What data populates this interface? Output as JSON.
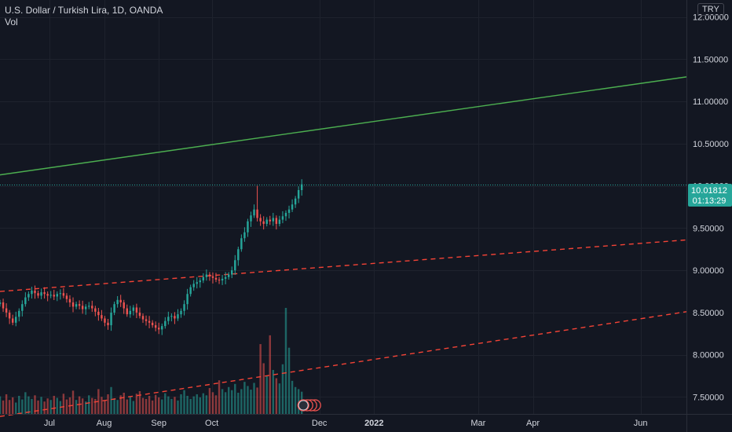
{
  "header": {
    "symbol_title": "U.S. Dollar / Turkish Lira, 1D, OANDA",
    "volume_label": "Vol",
    "currency": "TRY"
  },
  "price_tag": {
    "price": "10.01812",
    "countdown": "01:13:29"
  },
  "colors": {
    "background": "#131722",
    "grid": "#1e222d",
    "up": "#26a69a",
    "down": "#ef5350",
    "trend_green": "#4caf50",
    "trend_red": "#f44336",
    "text": "#d1d4dc",
    "last_price_bg": "#26a69a"
  },
  "chart_data": {
    "type": "candlestick",
    "title": "U.S. Dollar / Turkish Lira, 1D, OANDA",
    "y_axis": {
      "ticks": [
        "12.00000",
        "11.50000",
        "11.00000",
        "10.50000",
        "10.00000",
        "9.50000",
        "9.00000",
        "8.50000",
        "8.00000",
        "7.50000"
      ],
      "ylim": [
        7.3,
        12.2
      ]
    },
    "x_axis": {
      "ticks": [
        {
          "label": "Jul",
          "day": 0
        },
        {
          "label": "Aug",
          "day": 31
        },
        {
          "label": "Sep",
          "day": 62
        },
        {
          "label": "Oct",
          "day": 92
        },
        {
          "label": "Dec",
          "day": 153
        },
        {
          "label": "2022",
          "day": 184
        },
        {
          "label": "Mar",
          "day": 243
        },
        {
          "label": "Apr",
          "day": 274
        },
        {
          "label": "Jun",
          "day": 335
        }
      ],
      "xlim_days": [
        -28,
        361
      ]
    },
    "last_price": 10.01812,
    "trendlines": [
      {
        "name": "",
        "style": "solid",
        "color": "#4caf50",
        "points": [
          [
            -28,
            10.13
          ],
          [
            361,
            11.29
          ]
        ]
      },
      {
        "name": "",
        "style": "dashed",
        "color": "#f44336",
        "points": [
          [
            -28,
            8.75
          ],
          [
            361,
            9.36
          ]
        ]
      },
      {
        "name": "",
        "style": "dashed",
        "color": "#f44336",
        "points": [
          [
            -28,
            7.27
          ],
          [
            361,
            8.51
          ]
        ]
      }
    ],
    "closes": [
      8.62,
      8.55,
      8.5,
      8.43,
      8.38,
      8.45,
      8.52,
      8.6,
      8.68,
      8.72,
      8.76,
      8.73,
      8.7,
      8.74,
      8.72,
      8.7,
      8.71,
      8.69,
      8.72,
      8.73,
      8.7,
      8.66,
      8.62,
      8.57,
      8.6,
      8.58,
      8.54,
      8.57,
      8.58,
      8.55,
      8.51,
      8.47,
      8.43,
      8.38,
      8.35,
      8.5,
      8.6,
      8.65,
      8.62,
      8.55,
      8.48,
      8.52,
      8.56,
      8.5,
      8.46,
      8.42,
      8.4,
      8.38,
      8.35,
      8.32,
      8.3,
      8.34,
      8.4,
      8.45,
      8.46,
      8.43,
      8.48,
      8.52,
      8.6,
      8.72,
      8.8,
      8.84,
      8.86,
      8.88,
      8.92,
      8.95,
      8.93,
      8.91,
      8.89,
      8.88,
      8.9,
      8.92,
      8.95,
      9.0,
      9.12,
      9.25,
      9.38,
      9.45,
      9.58,
      9.65,
      9.72,
      9.62,
      9.58,
      9.55,
      9.6,
      9.58,
      9.62,
      9.55,
      9.6,
      9.64,
      9.68,
      9.72,
      9.78,
      9.85,
      9.95,
      10.01812
    ],
    "volumes": [
      3.4,
      2.6,
      3.8,
      2.7,
      3.2,
      2.2,
      3.5,
      2.8,
      4.2,
      3.4,
      2.9,
      3.6,
      2.6,
      3.3,
      2.4,
      3.0,
      2.7,
      3.5,
      3.1,
      2.5,
      3.9,
      2.8,
      3.2,
      4.5,
      2.7,
      3.4,
      3.0,
      2.4,
      3.6,
      3.1,
      2.9,
      4.8,
      3.3,
      2.6,
      3.8,
      5.2,
      3.0,
      2.7,
      3.6,
      4.1,
      2.8,
      3.3,
      2.5,
      3.9,
      4.4,
      3.1,
      2.9,
      3.5,
      2.6,
      3.7,
      3.2,
      2.8,
      4.0,
      3.4,
      2.9,
      3.3,
      2.6,
      3.8,
      4.6,
      3.5,
      2.9,
      3.4,
      3.8,
      3.2,
      4.0,
      3.6,
      5.0,
      4.2,
      3.6,
      6.5,
      4.8,
      4.2,
      5.2,
      4.6,
      5.8,
      4.1,
      4.8,
      6.2,
      5.4,
      4.7,
      6.0,
      5.1,
      13.5,
      9.8,
      7.4,
      15.2,
      8.5,
      6.9,
      5.9,
      9.6,
      20.5,
      12.8,
      6.4,
      5.2,
      4.8,
      4.3
    ]
  }
}
